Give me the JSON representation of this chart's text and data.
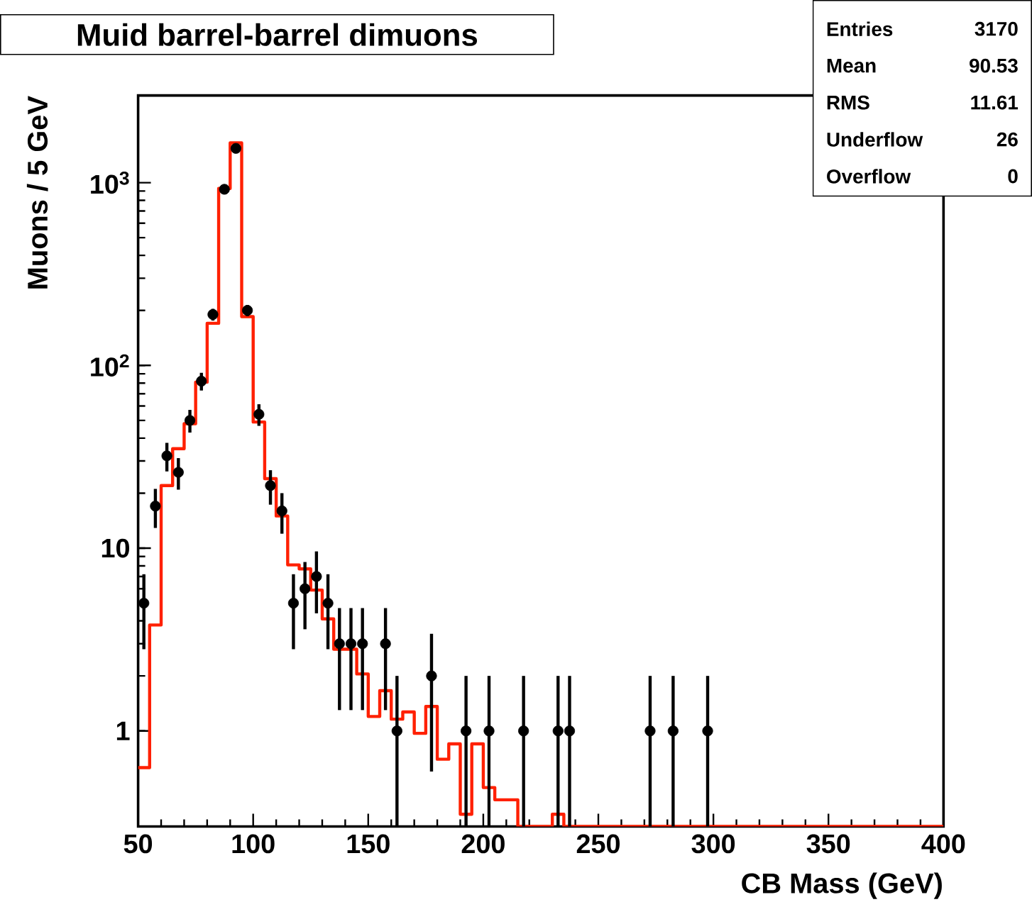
{
  "chart_data": {
    "type": "histogram",
    "title": "Muid barrel-barrel dimuons",
    "xlabel": "CB Mass (GeV)",
    "ylabel": "Muons / 5 GeV",
    "xlim": [
      50,
      400
    ],
    "xticks": [
      50,
      100,
      150,
      200,
      250,
      300,
      350,
      400
    ],
    "ylim": [
      0.3,
      3000
    ],
    "yticks": [
      1,
      10,
      {
        "value": 100,
        "label": "10$^{2}$"
      },
      {
        "value": 1000,
        "label": "10$^{3}$"
      }
    ],
    "log": "y",
    "grid": false,
    "marker": "circle",
    "annotations": [
      "Entries",
      "3170",
      "Mean",
      "90.53",
      "RMS",
      "11.61",
      "Underflow",
      "26",
      "Overflow",
      "0"
    ],
    "series": [
      {
        "color": "#ff2000",
        "bins": [
          50,
          55,
          60,
          65,
          70,
          75,
          80,
          85,
          90,
          95,
          100,
          105,
          110,
          115,
          120,
          125,
          130,
          135,
          140,
          145,
          150,
          155,
          160,
          165,
          170,
          175,
          180,
          185,
          190,
          195,
          200,
          205,
          210,
          215,
          220,
          225,
          230,
          235,
          240,
          245,
          250,
          255,
          260,
          265,
          270,
          275,
          280,
          285,
          290,
          295,
          300,
          305,
          310,
          315,
          320,
          325,
          330,
          335,
          340,
          345,
          350,
          355,
          360,
          365,
          370,
          375,
          380,
          385,
          390,
          395,
          400
        ],
        "values": [
          0.63,
          3.8,
          22,
          35,
          48,
          81,
          170,
          930,
          1650,
          185,
          49,
          24,
          15,
          8.1,
          7.7,
          5.9,
          4.1,
          2.8,
          2.8,
          2.05,
          1.2,
          1.66,
          1.16,
          1.27,
          0.97,
          1.36,
          0.7,
          0.85,
          0.35,
          0.85,
          0.49,
          0.42,
          0.42,
          null,
          null,
          null,
          0.35,
          null,
          null,
          null,
          null,
          null,
          null,
          null,
          null,
          null,
          null,
          null,
          null,
          null,
          null,
          null,
          null,
          null,
          null,
          null,
          null,
          null,
          null,
          null,
          null,
          null,
          null,
          null,
          null,
          null,
          null,
          null,
          null,
          null
        ]
      },
      {
        "type": "scatter",
        "color": "#000000",
        "x": [
          52.5,
          57.5,
          62.5,
          67.5,
          72.5,
          77.5,
          82.5,
          87.5,
          92.5,
          97.5,
          102.5,
          107.5,
          112.5,
          117.5,
          122.5,
          127.5,
          132.5,
          137.5,
          142.5,
          147.5,
          157.5,
          162.5,
          177.5,
          192.5,
          202.5,
          217.5,
          232.5,
          237.5,
          272.5,
          282.5,
          297.5
        ],
        "values": [
          5,
          17,
          32,
          26,
          50,
          82,
          190,
          920,
          1540,
          200,
          54,
          22,
          16,
          5,
          6,
          7,
          5,
          3,
          3,
          3,
          3,
          1,
          2,
          1,
          1,
          1,
          1,
          1,
          1,
          1,
          1
        ],
        "errors": [
          2.2,
          4.1,
          5.7,
          5.1,
          7.1,
          9.1,
          14,
          30,
          39,
          14,
          7.3,
          4.7,
          4,
          2.2,
          2.4,
          2.6,
          2.2,
          1.7,
          1.7,
          1.7,
          1.7,
          [
            0.3,
            2
          ],
          1.4,
          [
            0.3,
            2
          ],
          [
            0.3,
            2
          ],
          [
            0.3,
            2
          ],
          [
            0.3,
            2
          ],
          [
            0.3,
            2
          ],
          [
            0.3,
            2
          ],
          [
            0.3,
            2
          ],
          [
            0.3,
            2
          ]
        ]
      }
    ]
  }
}
